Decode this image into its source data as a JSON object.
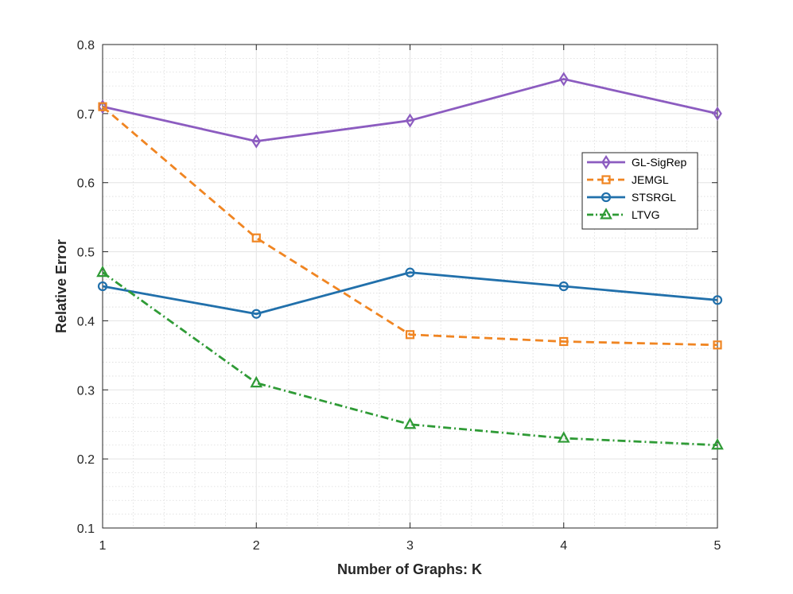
{
  "chart_data": {
    "type": "line",
    "title": "",
    "xlabel": "Number of Graphs: K",
    "ylabel": "Relative Error",
    "x": [
      1,
      2,
      3,
      4,
      5
    ],
    "xticks": [
      "1",
      "2",
      "3",
      "4",
      "5"
    ],
    "yticks": [
      "0.1",
      "0.2",
      "0.3",
      "0.4",
      "0.5",
      "0.6",
      "0.7",
      "0.8"
    ],
    "xlim": [
      1,
      5
    ],
    "ylim": [
      0.1,
      0.8
    ],
    "grid": true,
    "minor_grid": true,
    "legend_position": "right",
    "series": [
      {
        "name": "GL-SigRep",
        "values": [
          0.71,
          0.66,
          0.69,
          0.75,
          0.7
        ],
        "color": "#8c5cc0",
        "dash": "solid",
        "marker": "diamond"
      },
      {
        "name": "JEMGL",
        "values": [
          0.71,
          0.52,
          0.38,
          0.37,
          0.365
        ],
        "color": "#f08522",
        "dash": "dashed",
        "marker": "square"
      },
      {
        "name": "STSRGL",
        "values": [
          0.45,
          0.41,
          0.47,
          0.45,
          0.43
        ],
        "color": "#2170ab",
        "dash": "solid",
        "marker": "circle"
      },
      {
        "name": "LTVG",
        "values": [
          0.47,
          0.31,
          0.25,
          0.23,
          0.22
        ],
        "color": "#2f9b36",
        "dash": "dashdot",
        "marker": "triangle"
      }
    ]
  }
}
